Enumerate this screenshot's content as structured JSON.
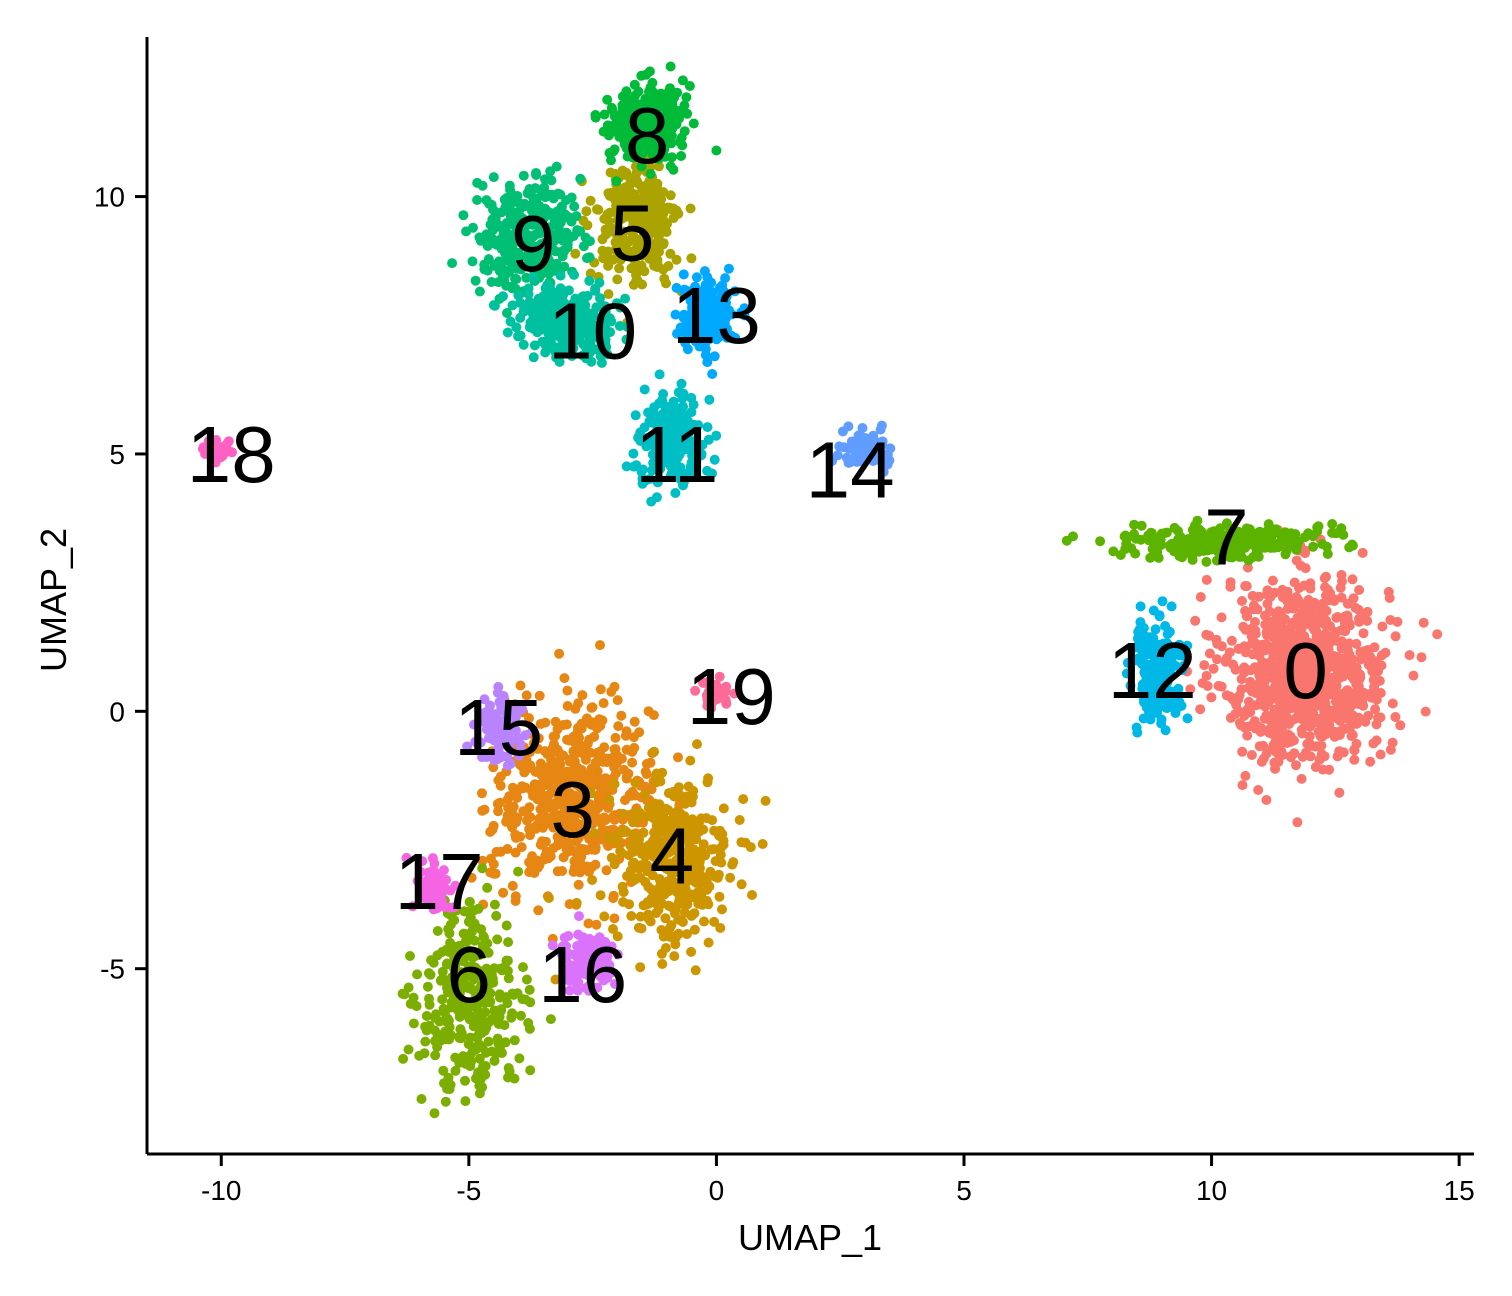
{
  "chart_data": {
    "type": "scatter",
    "title": "",
    "xlabel": "UMAP_1",
    "ylabel": "UMAP_2",
    "xlim": [
      -11.5,
      15.3
    ],
    "ylim": [
      -8.6,
      13.1
    ],
    "x_ticks": [
      -10,
      -5,
      0,
      5,
      10,
      15
    ],
    "x_tick_labels": [
      "-10",
      "-5",
      "0",
      "5",
      "10",
      "15"
    ],
    "y_ticks": [
      -5,
      0,
      5,
      10
    ],
    "y_tick_labels": [
      "-5",
      "0",
      "5",
      "10"
    ],
    "grid": false,
    "legend": "none",
    "clusters": [
      {
        "label": "0",
        "color": "#F8766D",
        "x": 11.9,
        "y": 0.8,
        "sx": 1.1,
        "sy": 1.2,
        "n": 900,
        "label_x": 11.9,
        "label_y": 0.8
      },
      {
        "label": "3",
        "color": "#E68613",
        "x": -2.9,
        "y": -1.7,
        "sx": 1.1,
        "sy": 1.2,
        "n": 560,
        "label_x": -2.9,
        "label_y": -1.9
      },
      {
        "label": "4",
        "color": "#CD9600",
        "x": -0.9,
        "y": -2.9,
        "sx": 0.8,
        "sy": 1.1,
        "n": 380,
        "label_x": -0.9,
        "label_y": -2.8
      },
      {
        "label": "5",
        "color": "#ABA300",
        "x": -1.6,
        "y": 9.5,
        "sx": 0.55,
        "sy": 0.8,
        "n": 300,
        "label_x": -1.7,
        "label_y": 9.3
      },
      {
        "label": "6",
        "color": "#7CAE00",
        "x": -5.0,
        "y": -5.6,
        "sx": 0.7,
        "sy": 1.2,
        "n": 330,
        "label_x": -5.0,
        "label_y": -5.1
      },
      {
        "label": "7",
        "color": "#5BB300",
        "x": 10.3,
        "y": 3.3,
        "sx": 1.3,
        "sy": 0.22,
        "n": 260,
        "label_x": 10.3,
        "label_y": 3.4
      },
      {
        "label": "8",
        "color": "#00BA38",
        "x": -1.4,
        "y": 11.4,
        "sx": 0.5,
        "sy": 0.5,
        "n": 300,
        "label_x": -1.4,
        "label_y": 11.2
      },
      {
        "label": "9",
        "color": "#00BF74",
        "x": -3.8,
        "y": 9.2,
        "sx": 0.7,
        "sy": 0.7,
        "n": 330,
        "label_x": -3.7,
        "label_y": 9.1
      },
      {
        "label": "10",
        "color": "#00C19F",
        "x": -3.0,
        "y": 7.6,
        "sx": 0.7,
        "sy": 0.45,
        "n": 260,
        "label_x": -2.5,
        "label_y": 7.4
      },
      {
        "label": "11",
        "color": "#00BFC4",
        "x": -0.9,
        "y": 5.3,
        "sx": 0.45,
        "sy": 0.6,
        "n": 200,
        "label_x": -0.8,
        "label_y": 5.0
      },
      {
        "label": "12",
        "color": "#00B8E7",
        "x": 8.9,
        "y": 0.8,
        "sx": 0.35,
        "sy": 0.6,
        "n": 200,
        "label_x": 8.8,
        "label_y": 0.8
      },
      {
        "label": "13",
        "color": "#00A9FF",
        "x": -0.2,
        "y": 7.7,
        "sx": 0.4,
        "sy": 0.45,
        "n": 170,
        "label_x": 0.0,
        "label_y": 7.7
      },
      {
        "label": "14",
        "color": "#619CFF",
        "x": 3.0,
        "y": 5.1,
        "sx": 0.4,
        "sy": 0.25,
        "n": 60,
        "label_x": 2.7,
        "label_y": 4.7
      },
      {
        "label": "15",
        "color": "#B983FF",
        "x": -4.4,
        "y": -0.4,
        "sx": 0.3,
        "sy": 0.45,
        "n": 90,
        "label_x": -4.4,
        "label_y": -0.3
      },
      {
        "label": "16",
        "color": "#DB72FB",
        "x": -2.6,
        "y": -4.8,
        "sx": 0.35,
        "sy": 0.35,
        "n": 120,
        "label_x": -2.7,
        "label_y": -5.1
      },
      {
        "label": "17",
        "color": "#F564E3",
        "x": -5.7,
        "y": -3.4,
        "sx": 0.25,
        "sy": 0.3,
        "n": 70,
        "label_x": -5.6,
        "label_y": -3.3
      },
      {
        "label": "18",
        "color": "#FF61C3",
        "x": -10.1,
        "y": 5.1,
        "sx": 0.18,
        "sy": 0.12,
        "n": 35,
        "label_x": -9.8,
        "label_y": 5.0
      },
      {
        "label": "19",
        "color": "#FF6A98",
        "x": 0.0,
        "y": 0.3,
        "sx": 0.2,
        "sy": 0.2,
        "n": 45,
        "label_x": 0.3,
        "label_y": 0.3
      }
    ]
  }
}
